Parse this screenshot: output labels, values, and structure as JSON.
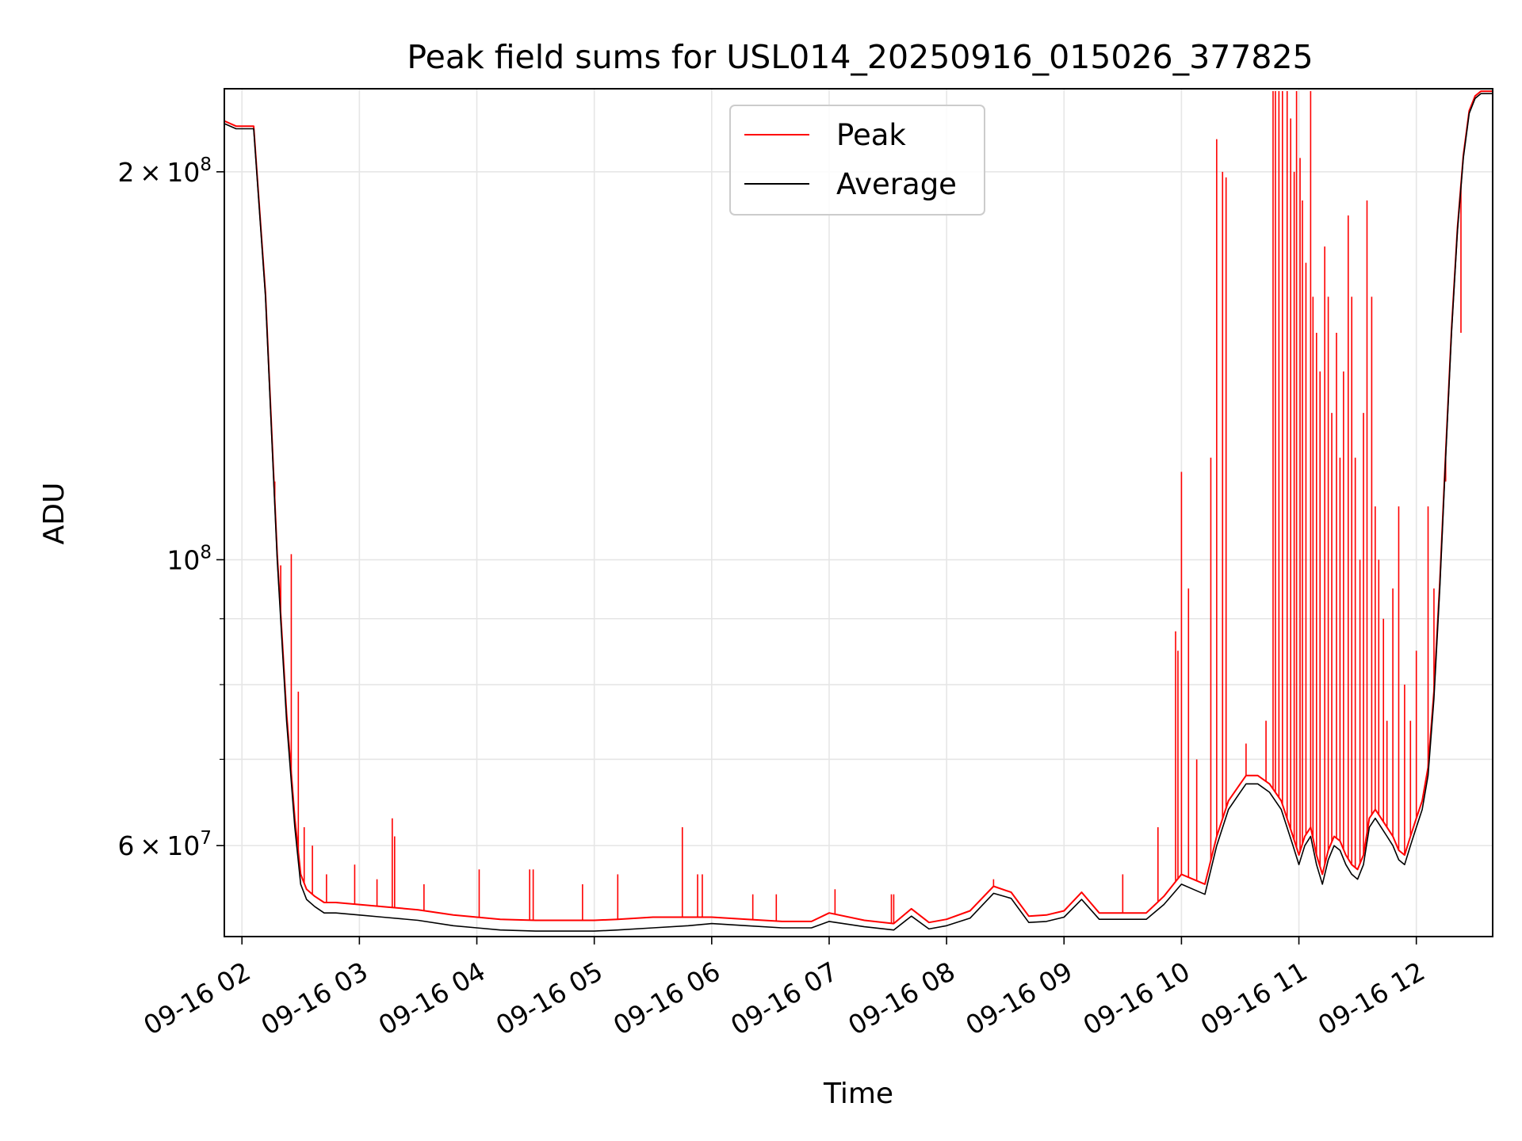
{
  "chart_data": {
    "type": "line",
    "title": "Peak field sums for USL014_20250916_015026_377825",
    "xlabel": "Time",
    "ylabel": "ADU",
    "yscale": "log",
    "xlim": [
      1.85,
      12.65
    ],
    "ylim": [
      51000000,
      232000000
    ],
    "grid": true,
    "legend_position": "upper center",
    "x_ticks": [
      {
        "value": 2,
        "label": "09-16 02"
      },
      {
        "value": 3,
        "label": "09-16 03"
      },
      {
        "value": 4,
        "label": "09-16 04"
      },
      {
        "value": 5,
        "label": "09-16 05"
      },
      {
        "value": 6,
        "label": "09-16 06"
      },
      {
        "value": 7,
        "label": "09-16 07"
      },
      {
        "value": 8,
        "label": "09-16 08"
      },
      {
        "value": 9,
        "label": "09-16 09"
      },
      {
        "value": 10,
        "label": "09-16 10"
      },
      {
        "value": 11,
        "label": "09-16 11"
      },
      {
        "value": 12,
        "label": "09-16 12"
      }
    ],
    "y_ticks_major": [
      {
        "value": 60000000,
        "mantissa": "6",
        "exponent": "7"
      },
      {
        "value": 100000000,
        "mantissa": "",
        "exponent": "8"
      },
      {
        "value": 200000000,
        "mantissa": "2",
        "exponent": "8"
      }
    ],
    "y_ticks_minor": [
      70000000,
      80000000,
      90000000
    ],
    "tick_base": "10",
    "tick_times": "×",
    "series": [
      {
        "name": "Average",
        "color": "#000000",
        "x": [
          1.85,
          1.95,
          2.1,
          2.2,
          2.3,
          2.38,
          2.45,
          2.5,
          2.55,
          2.62,
          2.7,
          2.8,
          3.0,
          3.2,
          3.5,
          3.8,
          4.0,
          4.2,
          4.5,
          4.8,
          5.0,
          5.2,
          5.5,
          5.8,
          6.0,
          6.3,
          6.6,
          6.85,
          7.0,
          7.3,
          7.55,
          7.7,
          7.85,
          8.0,
          8.2,
          8.4,
          8.55,
          8.7,
          8.85,
          9.0,
          9.15,
          9.3,
          9.5,
          9.7,
          9.85,
          10.0,
          10.1,
          10.2,
          10.3,
          10.4,
          10.5,
          10.55,
          10.65,
          10.75,
          10.85,
          10.95,
          11.0,
          11.05,
          11.1,
          11.15,
          11.2,
          11.25,
          11.3,
          11.35,
          11.4,
          11.45,
          11.5,
          11.55,
          11.6,
          11.65,
          11.7,
          11.75,
          11.8,
          11.85,
          11.9,
          11.95,
          12.0,
          12.05,
          12.1,
          12.15,
          12.2,
          12.25,
          12.3,
          12.35,
          12.4,
          12.45,
          12.5,
          12.55,
          12.6,
          12.65
        ],
        "values": [
          218000000,
          216000000,
          216000000,
          160000000,
          100000000,
          75000000,
          62000000,
          56000000,
          54500000,
          53800000,
          53200000,
          53200000,
          53000000,
          52800000,
          52500000,
          52000000,
          51800000,
          51600000,
          51500000,
          51500000,
          51500000,
          51600000,
          51800000,
          52000000,
          52200000,
          52000000,
          51800000,
          51800000,
          52400000,
          51900000,
          51600000,
          52900000,
          51700000,
          52000000,
          52700000,
          55100000,
          54600000,
          52300000,
          52400000,
          52800000,
          54500000,
          52600000,
          52600000,
          52600000,
          54000000,
          56000000,
          55500000,
          55000000,
          60000000,
          64000000,
          66000000,
          67000000,
          67000000,
          66000000,
          64000000,
          60000000,
          58000000,
          60000000,
          61000000,
          58000000,
          56000000,
          58500000,
          60000000,
          59500000,
          58000000,
          57000000,
          56500000,
          58000000,
          62000000,
          63000000,
          62000000,
          61000000,
          60000000,
          58500000,
          58000000,
          60000000,
          62000000,
          64000000,
          68000000,
          78000000,
          95000000,
          120000000,
          150000000,
          180000000,
          205000000,
          222000000,
          228000000,
          230000000,
          230000000,
          230000000
        ]
      },
      {
        "name": "Peak",
        "color": "#ff0000",
        "x": [
          1.85,
          1.95,
          2.1,
          2.2,
          2.3,
          2.38,
          2.45,
          2.5,
          2.55,
          2.62,
          2.7,
          2.8,
          3.0,
          3.2,
          3.5,
          3.8,
          4.0,
          4.2,
          4.5,
          4.8,
          5.0,
          5.2,
          5.5,
          5.8,
          6.0,
          6.3,
          6.6,
          6.85,
          7.0,
          7.3,
          7.55,
          7.7,
          7.85,
          8.0,
          8.2,
          8.4,
          8.55,
          8.7,
          8.85,
          9.0,
          9.15,
          9.3,
          9.5,
          9.7,
          9.85,
          10.0,
          10.1,
          10.2,
          10.3,
          10.4,
          10.5,
          10.55,
          10.65,
          10.75,
          10.85,
          10.95,
          11.0,
          11.05,
          11.1,
          11.15,
          11.2,
          11.25,
          11.3,
          11.35,
          11.4,
          11.45,
          11.5,
          11.55,
          11.6,
          11.65,
          11.7,
          11.75,
          11.8,
          11.85,
          11.9,
          11.95,
          12.0,
          12.05,
          12.1,
          12.15,
          12.2,
          12.25,
          12.3,
          12.35,
          12.4,
          12.45,
          12.5,
          12.55,
          12.6,
          12.65
        ],
        "values": [
          219000000,
          217000000,
          217000000,
          161000000,
          101000000,
          76000000,
          63000000,
          57000000,
          55500000,
          54800000,
          54200000,
          54200000,
          54000000,
          53800000,
          53500000,
          53000000,
          52800000,
          52600000,
          52500000,
          52500000,
          52500000,
          52600000,
          52800000,
          52800000,
          52800000,
          52600000,
          52400000,
          52400000,
          53200000,
          52500000,
          52200000,
          53600000,
          52300000,
          52600000,
          53400000,
          55800000,
          55200000,
          52900000,
          53000000,
          53400000,
          55200000,
          53200000,
          53200000,
          53200000,
          54800000,
          57000000,
          56500000,
          56000000,
          61000000,
          65000000,
          67000000,
          68000000,
          68000000,
          67000000,
          65000000,
          61000000,
          59000000,
          61000000,
          62000000,
          59000000,
          57000000,
          59500000,
          61000000,
          60500000,
          59000000,
          58000000,
          57500000,
          59000000,
          63000000,
          64000000,
          63000000,
          62000000,
          61000000,
          59500000,
          59000000,
          61000000,
          63000000,
          65000000,
          69000000,
          79000000,
          96000000,
          121000000,
          151000000,
          181000000,
          206000000,
          223000000,
          229000000,
          231000000,
          231000000,
          231000000
        ],
        "spikes": [
          {
            "x": 2.28,
            "value": 115000000
          },
          {
            "x": 2.33,
            "value": 99000000
          },
          {
            "x": 2.42,
            "value": 101000000
          },
          {
            "x": 2.48,
            "value": 79000000
          },
          {
            "x": 2.53,
            "value": 62000000
          },
          {
            "x": 2.6,
            "value": 60000000
          },
          {
            "x": 2.72,
            "value": 57000000
          },
          {
            "x": 2.96,
            "value": 58000000
          },
          {
            "x": 3.15,
            "value": 56500000
          },
          {
            "x": 3.28,
            "value": 63000000
          },
          {
            "x": 3.3,
            "value": 61000000
          },
          {
            "x": 3.55,
            "value": 56000000
          },
          {
            "x": 4.02,
            "value": 57500000
          },
          {
            "x": 4.45,
            "value": 57500000
          },
          {
            "x": 4.48,
            "value": 57500000
          },
          {
            "x": 4.9,
            "value": 56000000
          },
          {
            "x": 5.2,
            "value": 57000000
          },
          {
            "x": 5.75,
            "value": 62000000
          },
          {
            "x": 5.88,
            "value": 57000000
          },
          {
            "x": 5.92,
            "value": 57000000
          },
          {
            "x": 6.35,
            "value": 55000000
          },
          {
            "x": 6.55,
            "value": 55000000
          },
          {
            "x": 7.05,
            "value": 55500000
          },
          {
            "x": 7.53,
            "value": 55000000
          },
          {
            "x": 7.55,
            "value": 55000000
          },
          {
            "x": 8.4,
            "value": 56500000
          },
          {
            "x": 9.5,
            "value": 57000000
          },
          {
            "x": 9.8,
            "value": 62000000
          },
          {
            "x": 9.95,
            "value": 88000000
          },
          {
            "x": 9.97,
            "value": 85000000
          },
          {
            "x": 10.0,
            "value": 117000000
          },
          {
            "x": 10.06,
            "value": 95000000
          },
          {
            "x": 10.13,
            "value": 70000000
          },
          {
            "x": 10.25,
            "value": 120000000
          },
          {
            "x": 10.3,
            "value": 212000000
          },
          {
            "x": 10.35,
            "value": 200000000
          },
          {
            "x": 10.38,
            "value": 198000000
          },
          {
            "x": 10.55,
            "value": 72000000
          },
          {
            "x": 10.72,
            "value": 75000000
          },
          {
            "x": 10.78,
            "value": 231000000
          },
          {
            "x": 10.8,
            "value": 231000000
          },
          {
            "x": 10.83,
            "value": 231000000
          },
          {
            "x": 10.86,
            "value": 231000000
          },
          {
            "x": 10.9,
            "value": 231000000
          },
          {
            "x": 10.93,
            "value": 220000000
          },
          {
            "x": 10.96,
            "value": 200000000
          },
          {
            "x": 10.98,
            "value": 231000000
          },
          {
            "x": 11.01,
            "value": 205000000
          },
          {
            "x": 11.03,
            "value": 190000000
          },
          {
            "x": 11.06,
            "value": 170000000
          },
          {
            "x": 11.1,
            "value": 231000000
          },
          {
            "x": 11.12,
            "value": 160000000
          },
          {
            "x": 11.15,
            "value": 150000000
          },
          {
            "x": 11.18,
            "value": 140000000
          },
          {
            "x": 11.22,
            "value": 175000000
          },
          {
            "x": 11.25,
            "value": 160000000
          },
          {
            "x": 11.28,
            "value": 130000000
          },
          {
            "x": 11.32,
            "value": 150000000
          },
          {
            "x": 11.35,
            "value": 120000000
          },
          {
            "x": 11.38,
            "value": 140000000
          },
          {
            "x": 11.42,
            "value": 185000000
          },
          {
            "x": 11.45,
            "value": 160000000
          },
          {
            "x": 11.48,
            "value": 120000000
          },
          {
            "x": 11.52,
            "value": 100000000
          },
          {
            "x": 11.55,
            "value": 130000000
          },
          {
            "x": 11.58,
            "value": 190000000
          },
          {
            "x": 11.62,
            "value": 160000000
          },
          {
            "x": 11.65,
            "value": 110000000
          },
          {
            "x": 11.68,
            "value": 100000000
          },
          {
            "x": 11.72,
            "value": 90000000
          },
          {
            "x": 11.75,
            "value": 75000000
          },
          {
            "x": 11.8,
            "value": 95000000
          },
          {
            "x": 11.85,
            "value": 110000000
          },
          {
            "x": 11.9,
            "value": 80000000
          },
          {
            "x": 11.95,
            "value": 75000000
          },
          {
            "x": 12.0,
            "value": 85000000
          },
          {
            "x": 12.1,
            "value": 110000000
          },
          {
            "x": 12.15,
            "value": 95000000
          },
          {
            "x": 12.25,
            "value": 115000000
          },
          {
            "x": 12.38,
            "value": 150000000
          }
        ]
      }
    ],
    "legend": [
      {
        "label": "Peak",
        "color": "#ff0000"
      },
      {
        "label": "Average",
        "color": "#000000"
      }
    ]
  }
}
